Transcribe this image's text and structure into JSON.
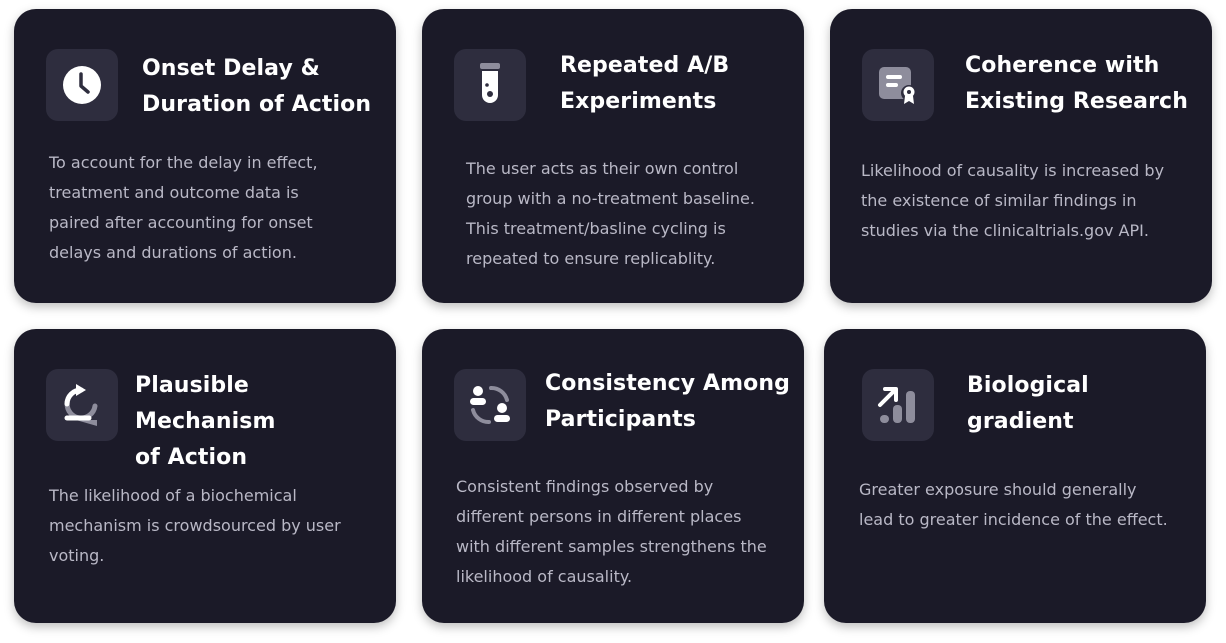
{
  "cards": [
    {
      "icon": "clock-icon",
      "title_line1": "Onset Delay &",
      "title_line2": "Duration of Action",
      "description": "To account for the delay in effect, treatment and outcome data is paired after accounting for onset delays and durations of action."
    },
    {
      "icon": "test-tube-icon",
      "title_line1": "Repeated A/B",
      "title_line2": "Experiments",
      "description": "The user acts as their own control group with a no-treatment baseline. This treatment/basline cycling is repeated to ensure replicablity."
    },
    {
      "icon": "certificate-icon",
      "title_line1": "Coherence with",
      "title_line2": "Existing Research",
      "description": "Likelihood of causality is increased by the existence of similar findings in studies via the clinicaltrials.gov API."
    },
    {
      "icon": "cycle-arrow-icon",
      "title_line1": "Plausible Mechanism",
      "title_line2": "of Action",
      "description": "The likelihood of a biochemical mechanism is crowdsourced by user voting."
    },
    {
      "icon": "users-exchange-icon",
      "title_line1": "Consistency Among",
      "title_line2": "Participants",
      "description": "Consistent findings observed by different persons in different places with different samples strengthens the likelihood of causality."
    },
    {
      "icon": "rising-chart-icon",
      "title_line1": "Biological",
      "title_line2": "gradient",
      "description": "Greater exposure should generally lead to greater incidence of the effect."
    }
  ],
  "colors": {
    "card_bg": "#1b1a28",
    "icon_bg": "#2e2d3e",
    "title": "#ffffff",
    "text": "#b9b8c6"
  }
}
